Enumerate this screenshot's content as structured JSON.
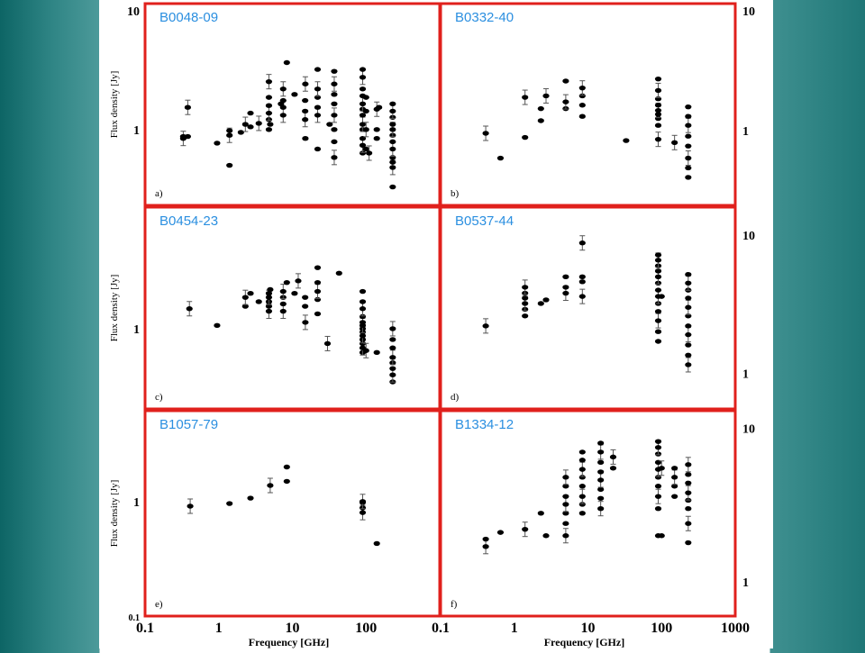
{
  "colors": {
    "frame": "#e0201c",
    "title": "#2b8fe0",
    "points": "#000000"
  },
  "axes": {
    "ylabel": "Flux density [Jy]",
    "xlabel": "Frequency [GHz]",
    "x_ticks": [
      "0.1",
      "1",
      "10",
      "100",
      "1000"
    ]
  },
  "chart_data": [
    {
      "type": "scatter",
      "panel": "a)",
      "title": "B0048-09",
      "x_scale": "log",
      "y_scale": "log",
      "ylabel": "Flux density [Jy]",
      "y_ticks": [
        "10",
        "1"
      ],
      "y_tick_side": "left",
      "points": [
        [
          0.33,
          0.85
        ],
        [
          0.33,
          0.88
        ],
        [
          0.38,
          0.88
        ],
        [
          0.38,
          1.5
        ],
        [
          0.95,
          0.78
        ],
        [
          1.4,
          0.52
        ],
        [
          1.4,
          0.9
        ],
        [
          1.4,
          0.98
        ],
        [
          2.0,
          0.95
        ],
        [
          2.3,
          1.1
        ],
        [
          2.7,
          1.05
        ],
        [
          2.7,
          1.35
        ],
        [
          3.5,
          1.12
        ],
        [
          4.8,
          1.0
        ],
        [
          4.8,
          1.2
        ],
        [
          4.8,
          1.35
        ],
        [
          4.8,
          1.55
        ],
        [
          4.8,
          1.8
        ],
        [
          4.8,
          2.4
        ],
        [
          5.0,
          1.1
        ],
        [
          7.0,
          1.6
        ],
        [
          7.5,
          1.3
        ],
        [
          7.5,
          1.5
        ],
        [
          7.5,
          1.7
        ],
        [
          7.5,
          2.1
        ],
        [
          8.4,
          3.4
        ],
        [
          10.7,
          1.9
        ],
        [
          14.9,
          1.2
        ],
        [
          14.9,
          1.4
        ],
        [
          14.9,
          1.7
        ],
        [
          15.0,
          2.3
        ],
        [
          15.0,
          0.85
        ],
        [
          22,
          0.7
        ],
        [
          22,
          1.3
        ],
        [
          22,
          1.5
        ],
        [
          22,
          1.8
        ],
        [
          22,
          2.1
        ],
        [
          22,
          3.0
        ],
        [
          32,
          1.1
        ],
        [
          37,
          0.6
        ],
        [
          37,
          0.8
        ],
        [
          37,
          1.0
        ],
        [
          37,
          1.3
        ],
        [
          37,
          1.6
        ],
        [
          37,
          1.9
        ],
        [
          37,
          2.3
        ],
        [
          37,
          2.9
        ],
        [
          90,
          0.65
        ],
        [
          90,
          0.75
        ],
        [
          90,
          0.85
        ],
        [
          90,
          1.0
        ],
        [
          90,
          1.1
        ],
        [
          90,
          1.3
        ],
        [
          90,
          1.45
        ],
        [
          90,
          1.6
        ],
        [
          90,
          1.85
        ],
        [
          90,
          2.1
        ],
        [
          90,
          2.6
        ],
        [
          90,
          3.0
        ],
        [
          100,
          0.7
        ],
        [
          100,
          1.0
        ],
        [
          100,
          1.4
        ],
        [
          100,
          1.8
        ],
        [
          110,
          0.65
        ],
        [
          140,
          0.85
        ],
        [
          140,
          1.0
        ],
        [
          140,
          1.45
        ],
        [
          150,
          1.5
        ],
        [
          230,
          0.35
        ],
        [
          230,
          0.5
        ],
        [
          230,
          0.55
        ],
        [
          230,
          0.6
        ],
        [
          230,
          0.7
        ],
        [
          230,
          0.8
        ],
        [
          230,
          0.9
        ],
        [
          230,
          1.0
        ],
        [
          230,
          1.1
        ],
        [
          230,
          1.25
        ],
        [
          230,
          1.4
        ],
        [
          230,
          1.6
        ]
      ]
    },
    {
      "type": "scatter",
      "panel": "b)",
      "title": "B0332-40",
      "x_scale": "log",
      "y_scale": "log",
      "ylabel": "",
      "y_ticks": [
        "10",
        "1"
      ],
      "y_tick_side": "right",
      "points": [
        [
          0.41,
          0.95
        ],
        [
          0.65,
          0.6
        ],
        [
          1.4,
          0.88
        ],
        [
          1.4,
          1.85
        ],
        [
          2.3,
          1.2
        ],
        [
          2.3,
          1.5
        ],
        [
          2.7,
          1.9
        ],
        [
          5.0,
          1.5
        ],
        [
          5.0,
          2.5
        ],
        [
          5.0,
          1.7
        ],
        [
          8.4,
          1.6
        ],
        [
          8.4,
          1.9
        ],
        [
          8.4,
          2.2
        ],
        [
          8.4,
          1.3
        ],
        [
          33,
          0.83
        ],
        [
          90,
          0.85
        ],
        [
          90,
          1.1
        ],
        [
          90,
          1.25
        ],
        [
          90,
          1.45
        ],
        [
          90,
          1.6
        ],
        [
          90,
          1.8
        ],
        [
          90,
          2.1
        ],
        [
          90,
          2.6
        ],
        [
          90,
          1.35
        ],
        [
          150,
          0.8
        ],
        [
          230,
          0.42
        ],
        [
          230,
          0.5
        ],
        [
          230,
          0.6
        ],
        [
          230,
          0.75
        ],
        [
          230,
          0.9
        ],
        [
          230,
          1.1
        ],
        [
          230,
          1.3
        ],
        [
          230,
          1.55
        ]
      ]
    },
    {
      "type": "scatter",
      "panel": "c)",
      "title": "B0454-23",
      "x_scale": "log",
      "y_scale": "log",
      "ylabel": "Flux density [Jy]",
      "y_ticks": [
        "1"
      ],
      "y_tick_side": "left",
      "points": [
        [
          0.4,
          1.35
        ],
        [
          0.95,
          1.05
        ],
        [
          2.3,
          1.4
        ],
        [
          2.3,
          1.6
        ],
        [
          2.7,
          1.7
        ],
        [
          3.5,
          1.5
        ],
        [
          4.8,
          1.3
        ],
        [
          4.8,
          1.4
        ],
        [
          4.8,
          1.5
        ],
        [
          4.8,
          1.6
        ],
        [
          4.8,
          1.7
        ],
        [
          5.0,
          1.8
        ],
        [
          7.5,
          1.3
        ],
        [
          7.5,
          1.45
        ],
        [
          7.5,
          1.6
        ],
        [
          7.5,
          1.75
        ],
        [
          8.4,
          2.0
        ],
        [
          10.7,
          1.7
        ],
        [
          12,
          2.05
        ],
        [
          14.9,
          1.4
        ],
        [
          14.9,
          1.6
        ],
        [
          15,
          1.1
        ],
        [
          22,
          1.25
        ],
        [
          22,
          1.55
        ],
        [
          22,
          1.75
        ],
        [
          22,
          2.0
        ],
        [
          22,
          2.5
        ],
        [
          30,
          0.8
        ],
        [
          43,
          2.3
        ],
        [
          90,
          0.7
        ],
        [
          90,
          0.75
        ],
        [
          90,
          0.8
        ],
        [
          90,
          0.85
        ],
        [
          90,
          0.9
        ],
        [
          90,
          0.95
        ],
        [
          90,
          1.0
        ],
        [
          90,
          1.05
        ],
        [
          90,
          1.1
        ],
        [
          90,
          1.2
        ],
        [
          90,
          1.35
        ],
        [
          90,
          1.5
        ],
        [
          90,
          1.75
        ],
        [
          100,
          0.72
        ],
        [
          140,
          0.7
        ],
        [
          230,
          0.45
        ],
        [
          230,
          0.5
        ],
        [
          230,
          0.55
        ],
        [
          230,
          0.6
        ],
        [
          230,
          0.65
        ],
        [
          230,
          0.75
        ],
        [
          230,
          0.85
        ],
        [
          230,
          1.0
        ]
      ]
    },
    {
      "type": "scatter",
      "panel": "d)",
      "title": "B0537-44",
      "x_scale": "log",
      "y_scale": "log",
      "ylabel": "",
      "y_ticks": [
        "10",
        "1"
      ],
      "y_tick_side": "right",
      "points": [
        [
          0.41,
          2.2
        ],
        [
          1.4,
          2.6
        ],
        [
          1.4,
          2.9
        ],
        [
          1.4,
          3.2
        ],
        [
          1.4,
          3.5
        ],
        [
          1.4,
          3.8
        ],
        [
          1.4,
          4.2
        ],
        [
          2.3,
          3.2
        ],
        [
          2.7,
          3.4
        ],
        [
          5.0,
          3.8
        ],
        [
          5.0,
          4.2
        ],
        [
          5.0,
          5.0
        ],
        [
          8.4,
          3.6
        ],
        [
          8.4,
          4.6
        ],
        [
          8.4,
          5.0
        ],
        [
          8.4,
          8.8
        ],
        [
          90,
          1.7
        ],
        [
          90,
          2.0
        ],
        [
          90,
          2.4
        ],
        [
          90,
          2.8
        ],
        [
          90,
          3.2
        ],
        [
          90,
          3.6
        ],
        [
          90,
          4.0
        ],
        [
          90,
          4.5
        ],
        [
          90,
          5.0
        ],
        [
          90,
          5.5
        ],
        [
          90,
          6.0
        ],
        [
          90,
          6.6
        ],
        [
          90,
          7.2
        ],
        [
          100,
          3.6
        ],
        [
          230,
          1.15
        ],
        [
          230,
          1.35
        ],
        [
          230,
          1.6
        ],
        [
          230,
          1.9
        ],
        [
          230,
          2.2
        ],
        [
          230,
          2.6
        ],
        [
          230,
          3.0
        ],
        [
          230,
          3.5
        ],
        [
          230,
          4.0
        ],
        [
          230,
          4.5
        ],
        [
          230,
          5.2
        ]
      ]
    },
    {
      "type": "scatter",
      "panel": "e)",
      "title": "B1057-79",
      "x_scale": "log",
      "y_scale": "log",
      "ylabel": "Flux density [Jy]",
      "y_ticks": [
        "1",
        "0.1"
      ],
      "y_tick_side": "left",
      "points": [
        [
          0.41,
          0.91
        ],
        [
          1.4,
          0.96
        ],
        [
          2.7,
          1.07
        ],
        [
          5.0,
          1.38
        ],
        [
          8.4,
          1.5
        ],
        [
          8.4,
          2.0
        ],
        [
          90,
          0.8
        ],
        [
          90,
          0.88
        ],
        [
          90,
          0.98
        ],
        [
          90,
          1.0
        ],
        [
          140,
          0.43
        ]
      ]
    },
    {
      "type": "scatter",
      "panel": "f)",
      "title": "B1334-12",
      "x_scale": "log",
      "y_scale": "log",
      "ylabel": "",
      "y_ticks": [
        "10",
        "1"
      ],
      "y_tick_side": "right",
      "points": [
        [
          0.41,
          1.7
        ],
        [
          0.41,
          1.9
        ],
        [
          0.65,
          2.1
        ],
        [
          1.4,
          2.2
        ],
        [
          2.3,
          2.8
        ],
        [
          2.7,
          2.0
        ],
        [
          5.0,
          2.0
        ],
        [
          5.0,
          2.4
        ],
        [
          5.0,
          2.8
        ],
        [
          5.0,
          3.2
        ],
        [
          5.0,
          3.6
        ],
        [
          5.0,
          4.2
        ],
        [
          5.0,
          4.8
        ],
        [
          8.4,
          2.8
        ],
        [
          8.4,
          3.2
        ],
        [
          8.4,
          3.6
        ],
        [
          8.4,
          4.2
        ],
        [
          8.4,
          4.8
        ],
        [
          8.4,
          5.4
        ],
        [
          8.4,
          6.2
        ],
        [
          8.4,
          7.0
        ],
        [
          14.9,
          3.0
        ],
        [
          14.9,
          3.5
        ],
        [
          14.9,
          4.0
        ],
        [
          14.9,
          4.6
        ],
        [
          14.9,
          5.2
        ],
        [
          14.9,
          6.0
        ],
        [
          14.9,
          7.0
        ],
        [
          14.9,
          8.0
        ],
        [
          22,
          5.5
        ],
        [
          22,
          6.5
        ],
        [
          90,
          2.0
        ],
        [
          90,
          3.0
        ],
        [
          90,
          3.6
        ],
        [
          90,
          4.2
        ],
        [
          90,
          4.8
        ],
        [
          90,
          5.4
        ],
        [
          90,
          6.0
        ],
        [
          90,
          6.8
        ],
        [
          90,
          7.5
        ],
        [
          90,
          8.2
        ],
        [
          100,
          2.0
        ],
        [
          100,
          5.5
        ],
        [
          150,
          3.6
        ],
        [
          150,
          4.2
        ],
        [
          150,
          4.8
        ],
        [
          150,
          5.5
        ],
        [
          230,
          1.8
        ],
        [
          230,
          2.4
        ],
        [
          230,
          3.0
        ],
        [
          230,
          3.4
        ],
        [
          230,
          3.8
        ],
        [
          230,
          4.4
        ],
        [
          230,
          5.0
        ],
        [
          230,
          5.8
        ]
      ]
    }
  ]
}
